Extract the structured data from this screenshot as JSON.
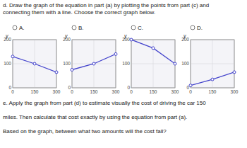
{
  "title": "d. Draw the graph of the equation in part (a) by plotting the points from part (c) and\nconnecting them with a line. Choose the correct graph below.",
  "annotations": [
    "e. Apply the graph from part (d) to estimate visually the cost of driving the car 150",
    "miles.  Then calculate that cost exactly by using the equation from part (a).",
    "Based on the graph, between what two amounts will the cost fall?"
  ],
  "chart_data": [
    {
      "type": "line",
      "title": "A.",
      "y_label": "y",
      "x": [
        0,
        150,
        300
      ],
      "values": [
        130,
        100,
        65
      ],
      "color": "#4444cc",
      "marker": "circle",
      "xlim": [
        0,
        300
      ],
      "ylim": [
        0,
        200
      ],
      "xticks": [
        0,
        150,
        300
      ],
      "yticks": [
        0,
        100,
        200
      ],
      "grid": true
    },
    {
      "type": "line",
      "title": "B.",
      "y_label": "y",
      "x": [
        0,
        150,
        300
      ],
      "values": [
        75,
        100,
        140
      ],
      "color": "#4444cc",
      "marker": "circle",
      "xlim": [
        0,
        300
      ],
      "ylim": [
        0,
        200
      ],
      "xticks": [
        0,
        150,
        300
      ],
      "yticks": [
        0,
        100,
        200
      ],
      "grid": true
    },
    {
      "type": "line",
      "title": "C.",
      "y_label": "y",
      "x": [
        0,
        150,
        300
      ],
      "values": [
        200,
        165,
        100
      ],
      "color": "#4444cc",
      "marker": "circle",
      "xlim": [
        0,
        300
      ],
      "ylim": [
        0,
        200
      ],
      "xticks": [
        0,
        150,
        300
      ],
      "yticks": [
        0,
        100,
        200
      ],
      "grid": true
    },
    {
      "type": "line",
      "title": "D.",
      "y_label": "y",
      "x": [
        0,
        150,
        300
      ],
      "values": [
        10,
        35,
        65
      ],
      "color": "#4444cc",
      "marker": "circle",
      "xlim": [
        0,
        300
      ],
      "ylim": [
        0,
        200
      ],
      "xticks": [
        0,
        150,
        300
      ],
      "yticks": [
        0,
        100,
        200
      ],
      "grid": true
    }
  ]
}
